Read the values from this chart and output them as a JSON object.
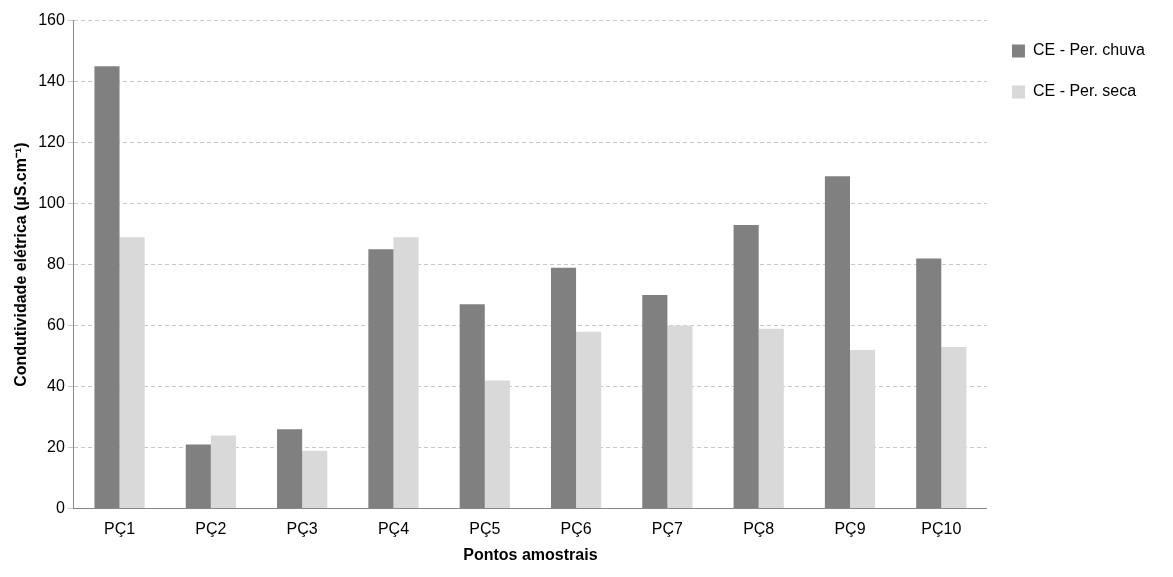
{
  "chart_data": {
    "type": "bar",
    "xlabel": "Pontos amostrais",
    "ylabel": "Condutividade elétrica (µS.cm⁻¹)",
    "categories": [
      "PÇ1",
      "PÇ2",
      "PÇ3",
      "PÇ4",
      "PÇ5",
      "PÇ6",
      "PÇ7",
      "PÇ8",
      "PÇ9",
      "PÇ10"
    ],
    "series": [
      {
        "name": "CE - Per. chuva",
        "color": "#808080",
        "values": [
          145,
          21,
          26,
          85,
          67,
          79,
          70,
          93,
          109,
          82
        ]
      },
      {
        "name": "CE - Per. seca",
        "color": "#d9d9d9",
        "values": [
          89,
          24,
          19,
          89,
          42,
          58,
          60,
          59,
          52,
          53
        ]
      }
    ],
    "ylim": [
      0,
      160
    ],
    "yticks": [
      0,
      20,
      40,
      60,
      80,
      100,
      120,
      140,
      160
    ],
    "grid": "y",
    "legend": "top right"
  }
}
